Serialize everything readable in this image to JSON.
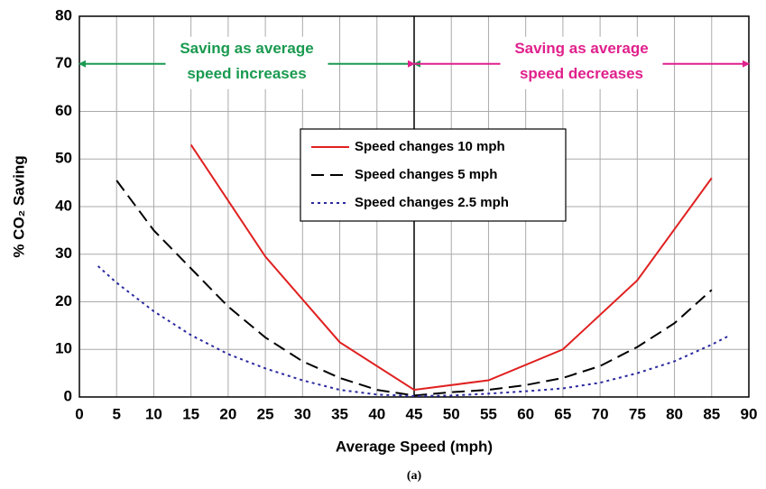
{
  "chart_data": {
    "type": "line",
    "x_label": "Average Speed (mph)",
    "y_label": "% CO₂ Saving",
    "caption": "(a)",
    "xlim": [
      0,
      90
    ],
    "xticks": [
      0,
      5,
      10,
      15,
      20,
      25,
      30,
      35,
      40,
      45,
      50,
      55,
      60,
      65,
      70,
      75,
      80,
      85,
      90
    ],
    "ylim": [
      0,
      80
    ],
    "yticks": [
      0,
      10,
      20,
      30,
      40,
      50,
      60,
      70,
      80
    ],
    "grid": true,
    "divider_x": 45,
    "annotations": [
      {
        "lines": [
          "Saving as average",
          "speed increases"
        ],
        "color": "#1a9a50",
        "x_from": 45,
        "x_to": 0,
        "y": 70
      },
      {
        "lines": [
          "Saving as average",
          "speed decreases"
        ],
        "color": "#e0208c",
        "x_from": 45,
        "x_to": 90,
        "y": 70
      }
    ],
    "series": [
      {
        "name": "Speed changes 10 mph",
        "color": "#e02020",
        "dash": "solid",
        "x": [
          15,
          25,
          35,
          45,
          55,
          65,
          75,
          85
        ],
        "values": [
          53,
          29.5,
          11.5,
          1.5,
          3.5,
          10,
          24.5,
          46
        ]
      },
      {
        "name": "Speed changes 5 mph",
        "color": "#000000",
        "dash": "dashed",
        "x": [
          5,
          10,
          15,
          20,
          25,
          30,
          35,
          40,
          45,
          50,
          55,
          60,
          65,
          70,
          75,
          80,
          85
        ],
        "values": [
          45.5,
          35,
          27,
          19,
          12.5,
          7.5,
          4,
          1.5,
          0.3,
          1,
          1.5,
          2.5,
          4,
          6.5,
          10.5,
          15.5,
          22.5
        ]
      },
      {
        "name": "Speed changes 2.5 mph",
        "color": "#2a2aa0",
        "dash": "dotted",
        "x": [
          2.5,
          5,
          10,
          15,
          20,
          25,
          30,
          35,
          40,
          45,
          50,
          55,
          60,
          65,
          70,
          75,
          80,
          85,
          87.5
        ],
        "values": [
          27.5,
          24,
          18,
          13,
          9,
          6,
          3.5,
          1.5,
          0.5,
          0.2,
          0.3,
          0.7,
          1.2,
          1.8,
          3,
          5,
          7.5,
          11,
          13
        ]
      }
    ]
  }
}
